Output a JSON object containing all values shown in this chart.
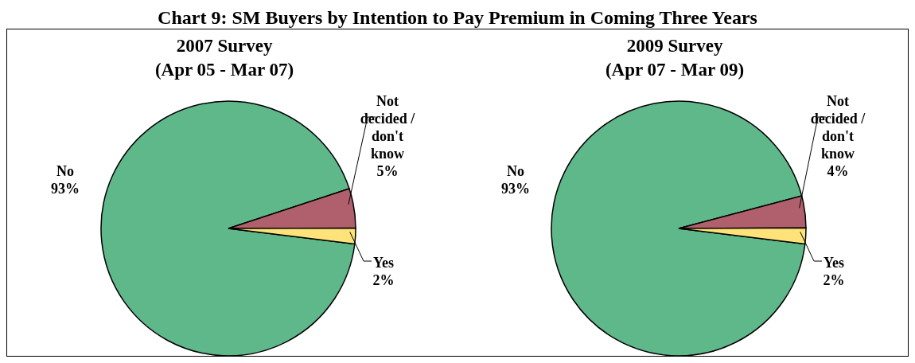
{
  "chart_data": [
    {
      "type": "pie",
      "title": "2007 Survey",
      "subtitle": "(Apr 05 - Mar 07)",
      "annotations": [
        "Chart 9: SM Buyers by Intention to Pay Premium in Coming Three Years"
      ],
      "categories": [
        "No",
        "Not decided / don't know",
        "Yes"
      ],
      "values": [
        93,
        5,
        2
      ],
      "value_labels": [
        "93%",
        "5%",
        "2%"
      ],
      "colors": [
        "#5fb88a",
        "#b0606c",
        "#ffe27a"
      ],
      "legend": false
    },
    {
      "type": "pie",
      "title": "2009 Survey",
      "subtitle": "(Apr 07 - Mar 09)",
      "categories": [
        "No",
        "Not decided / don't know",
        "Yes"
      ],
      "values": [
        93,
        4,
        2
      ],
      "value_labels": [
        "93%",
        "4%",
        "2%"
      ],
      "colors": [
        "#5fb88a",
        "#b0606c",
        "#ffe27a"
      ],
      "legend": false
    }
  ]
}
